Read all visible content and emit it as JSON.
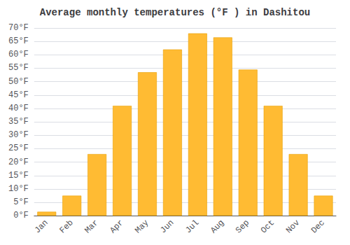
{
  "chart_data": {
    "type": "bar",
    "title": "Average monthly temperatures (°F ) in Dashitou",
    "categories": [
      "Jan",
      "Feb",
      "Mar",
      "Apr",
      "May",
      "Jun",
      "Jul",
      "Aug",
      "Sep",
      "Oct",
      "Nov",
      "Dec"
    ],
    "values": [
      1.5,
      7.5,
      23,
      41,
      53.5,
      62,
      68,
      66.5,
      54.5,
      41,
      23,
      7.5
    ],
    "color": "#FFBB33",
    "ylim": [
      0,
      70
    ],
    "yticks": [
      {
        "value": 0,
        "label": "0°F"
      },
      {
        "value": 5,
        "label": "5°F"
      },
      {
        "value": 10,
        "label": "10°F"
      },
      {
        "value": 15,
        "label": "15°F"
      },
      {
        "value": 20,
        "label": "20°F"
      },
      {
        "value": 25,
        "label": "25°F"
      },
      {
        "value": 30,
        "label": "30°F"
      },
      {
        "value": 35,
        "label": "35°F"
      },
      {
        "value": 40,
        "label": "40°F"
      },
      {
        "value": 45,
        "label": "45°F"
      },
      {
        "value": 50,
        "label": "50°F"
      },
      {
        "value": 55,
        "label": "55°F"
      },
      {
        "value": 60,
        "label": "60°F"
      },
      {
        "value": 65,
        "label": "65°F"
      },
      {
        "value": 70,
        "label": "70°F"
      }
    ],
    "grid": true
  }
}
